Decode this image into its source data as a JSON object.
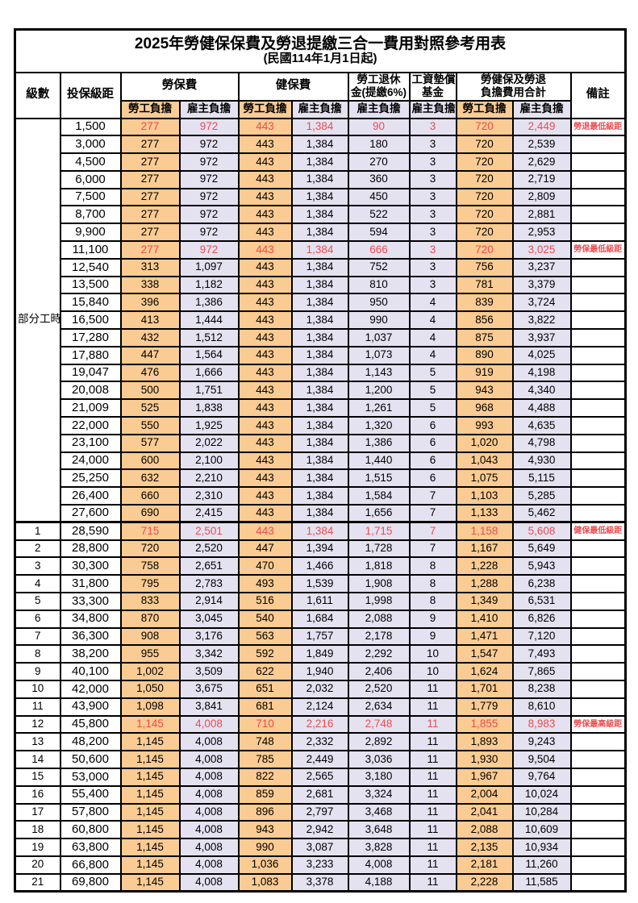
{
  "title": {
    "main": "2025年勞健保保費及勞退提繳三合一費用對照參考用表",
    "sub": "(民國114年1月1日起)"
  },
  "header": {
    "level": "級數",
    "bracket": "投保級距",
    "labor_fee": "勞保費",
    "health_fee": "健保費",
    "pension_line1": "勞工退休",
    "pension_line2": "金(提繳6%)",
    "wage_fund_line1": "工資墊償",
    "wage_fund_line2": "基金",
    "total_line1": "勞健保及勞退",
    "total_line2": "負擔費用合計",
    "remark": "備註",
    "employee_label": "勞工負擔",
    "employer_label": "雇主負擔"
  },
  "part_time_label": "部分工時",
  "colors": {
    "employee_bg": "#FACB92",
    "employer_bg": "#E4E2F1",
    "highlight_red": "#EE4B4F",
    "border": "#000000"
  },
  "rows": [
    {
      "level": "",
      "bracket": "1,500",
      "values": [
        "277",
        "972",
        "443",
        "1,384",
        "90",
        "3",
        "720",
        "2,449"
      ],
      "note": "勞退最低級距",
      "red": true
    },
    {
      "level": "",
      "bracket": "3,000",
      "values": [
        "277",
        "972",
        "443",
        "1,384",
        "180",
        "3",
        "720",
        "2,539"
      ],
      "note": "",
      "red": false
    },
    {
      "level": "",
      "bracket": "4,500",
      "values": [
        "277",
        "972",
        "443",
        "1,384",
        "270",
        "3",
        "720",
        "2,629"
      ],
      "note": "",
      "red": false
    },
    {
      "level": "",
      "bracket": "6,000",
      "values": [
        "277",
        "972",
        "443",
        "1,384",
        "360",
        "3",
        "720",
        "2,719"
      ],
      "note": "",
      "red": false
    },
    {
      "level": "",
      "bracket": "7,500",
      "values": [
        "277",
        "972",
        "443",
        "1,384",
        "450",
        "3",
        "720",
        "2,809"
      ],
      "note": "",
      "red": false
    },
    {
      "level": "",
      "bracket": "8,700",
      "values": [
        "277",
        "972",
        "443",
        "1,384",
        "522",
        "3",
        "720",
        "2,881"
      ],
      "note": "",
      "red": false
    },
    {
      "level": "",
      "bracket": "9,900",
      "values": [
        "277",
        "972",
        "443",
        "1,384",
        "594",
        "3",
        "720",
        "2,953"
      ],
      "note": "",
      "red": false
    },
    {
      "level": "",
      "bracket": "11,100",
      "values": [
        "277",
        "972",
        "443",
        "1,384",
        "666",
        "3",
        "720",
        "3,025"
      ],
      "note": "勞保最低級距",
      "red": true
    },
    {
      "level": "",
      "bracket": "12,540",
      "values": [
        "313",
        "1,097",
        "443",
        "1,384",
        "752",
        "3",
        "756",
        "3,237"
      ],
      "note": "",
      "red": false
    },
    {
      "level": "",
      "bracket": "13,500",
      "values": [
        "338",
        "1,182",
        "443",
        "1,384",
        "810",
        "3",
        "781",
        "3,379"
      ],
      "note": "",
      "red": false
    },
    {
      "level": "",
      "bracket": "15,840",
      "values": [
        "396",
        "1,386",
        "443",
        "1,384",
        "950",
        "4",
        "839",
        "3,724"
      ],
      "note": "",
      "red": false
    },
    {
      "level": "",
      "bracket": "16,500",
      "values": [
        "413",
        "1,444",
        "443",
        "1,384",
        "990",
        "4",
        "856",
        "3,822"
      ],
      "note": "",
      "red": false
    },
    {
      "level": "",
      "bracket": "17,280",
      "values": [
        "432",
        "1,512",
        "443",
        "1,384",
        "1,037",
        "4",
        "875",
        "3,937"
      ],
      "note": "",
      "red": false
    },
    {
      "level": "",
      "bracket": "17,880",
      "values": [
        "447",
        "1,564",
        "443",
        "1,384",
        "1,073",
        "4",
        "890",
        "4,025"
      ],
      "note": "",
      "red": false
    },
    {
      "level": "",
      "bracket": "19,047",
      "values": [
        "476",
        "1,666",
        "443",
        "1,384",
        "1,143",
        "5",
        "919",
        "4,198"
      ],
      "note": "",
      "red": false
    },
    {
      "level": "",
      "bracket": "20,008",
      "values": [
        "500",
        "1,751",
        "443",
        "1,384",
        "1,200",
        "5",
        "943",
        "4,340"
      ],
      "note": "",
      "red": false
    },
    {
      "level": "",
      "bracket": "21,009",
      "values": [
        "525",
        "1,838",
        "443",
        "1,384",
        "1,261",
        "5",
        "968",
        "4,488"
      ],
      "note": "",
      "red": false
    },
    {
      "level": "",
      "bracket": "22,000",
      "values": [
        "550",
        "1,925",
        "443",
        "1,384",
        "1,320",
        "6",
        "993",
        "4,635"
      ],
      "note": "",
      "red": false
    },
    {
      "level": "",
      "bracket": "23,100",
      "values": [
        "577",
        "2,022",
        "443",
        "1,384",
        "1,386",
        "6",
        "1,020",
        "4,798"
      ],
      "note": "",
      "red": false
    },
    {
      "level": "",
      "bracket": "24,000",
      "values": [
        "600",
        "2,100",
        "443",
        "1,384",
        "1,440",
        "6",
        "1,043",
        "4,930"
      ],
      "note": "",
      "red": false
    },
    {
      "level": "",
      "bracket": "25,250",
      "values": [
        "632",
        "2,210",
        "443",
        "1,384",
        "1,515",
        "6",
        "1,075",
        "5,115"
      ],
      "note": "",
      "red": false
    },
    {
      "level": "",
      "bracket": "26,400",
      "values": [
        "660",
        "2,310",
        "443",
        "1,384",
        "1,584",
        "7",
        "1,103",
        "5,285"
      ],
      "note": "",
      "red": false
    },
    {
      "level": "",
      "bracket": "27,600",
      "values": [
        "690",
        "2,415",
        "443",
        "1,384",
        "1,656",
        "7",
        "1,133",
        "5,462"
      ],
      "note": "",
      "red": false
    },
    {
      "level": "1",
      "bracket": "28,590",
      "values": [
        "715",
        "2,501",
        "443",
        "1,384",
        "1,715",
        "7",
        "1,158",
        "5,608"
      ],
      "note": "健保最低級距",
      "red": true
    },
    {
      "level": "2",
      "bracket": "28,800",
      "values": [
        "720",
        "2,520",
        "447",
        "1,394",
        "1,728",
        "7",
        "1,167",
        "5,649"
      ],
      "note": "",
      "red": false
    },
    {
      "level": "3",
      "bracket": "30,300",
      "values": [
        "758",
        "2,651",
        "470",
        "1,466",
        "1,818",
        "8",
        "1,228",
        "5,943"
      ],
      "note": "",
      "red": false
    },
    {
      "level": "4",
      "bracket": "31,800",
      "values": [
        "795",
        "2,783",
        "493",
        "1,539",
        "1,908",
        "8",
        "1,288",
        "6,238"
      ],
      "note": "",
      "red": false
    },
    {
      "level": "5",
      "bracket": "33,300",
      "values": [
        "833",
        "2,914",
        "516",
        "1,611",
        "1,998",
        "8",
        "1,349",
        "6,531"
      ],
      "note": "",
      "red": false
    },
    {
      "level": "6",
      "bracket": "34,800",
      "values": [
        "870",
        "3,045",
        "540",
        "1,684",
        "2,088",
        "9",
        "1,410",
        "6,826"
      ],
      "note": "",
      "red": false
    },
    {
      "level": "7",
      "bracket": "36,300",
      "values": [
        "908",
        "3,176",
        "563",
        "1,757",
        "2,178",
        "9",
        "1,471",
        "7,120"
      ],
      "note": "",
      "red": false
    },
    {
      "level": "8",
      "bracket": "38,200",
      "values": [
        "955",
        "3,342",
        "592",
        "1,849",
        "2,292",
        "10",
        "1,547",
        "7,493"
      ],
      "note": "",
      "red": false
    },
    {
      "level": "9",
      "bracket": "40,100",
      "values": [
        "1,002",
        "3,509",
        "622",
        "1,940",
        "2,406",
        "10",
        "1,624",
        "7,865"
      ],
      "note": "",
      "red": false
    },
    {
      "level": "10",
      "bracket": "42,000",
      "values": [
        "1,050",
        "3,675",
        "651",
        "2,032",
        "2,520",
        "11",
        "1,701",
        "8,238"
      ],
      "note": "",
      "red": false
    },
    {
      "level": "11",
      "bracket": "43,900",
      "values": [
        "1,098",
        "3,841",
        "681",
        "2,124",
        "2,634",
        "11",
        "1,779",
        "8,610"
      ],
      "note": "",
      "red": false
    },
    {
      "level": "12",
      "bracket": "45,800",
      "values": [
        "1,145",
        "4,008",
        "710",
        "2,216",
        "2,748",
        "11",
        "1,855",
        "8,983"
      ],
      "note": "勞保最高級距",
      "red": true
    },
    {
      "level": "13",
      "bracket": "48,200",
      "values": [
        "1,145",
        "4,008",
        "748",
        "2,332",
        "2,892",
        "11",
        "1,893",
        "9,243"
      ],
      "note": "",
      "red": false
    },
    {
      "level": "14",
      "bracket": "50,600",
      "values": [
        "1,145",
        "4,008",
        "785",
        "2,449",
        "3,036",
        "11",
        "1,930",
        "9,504"
      ],
      "note": "",
      "red": false
    },
    {
      "level": "15",
      "bracket": "53,000",
      "values": [
        "1,145",
        "4,008",
        "822",
        "2,565",
        "3,180",
        "11",
        "1,967",
        "9,764"
      ],
      "note": "",
      "red": false
    },
    {
      "level": "16",
      "bracket": "55,400",
      "values": [
        "1,145",
        "4,008",
        "859",
        "2,681",
        "3,324",
        "11",
        "2,004",
        "10,024"
      ],
      "note": "",
      "red": false
    },
    {
      "level": "17",
      "bracket": "57,800",
      "values": [
        "1,145",
        "4,008",
        "896",
        "2,797",
        "3,468",
        "11",
        "2,041",
        "10,284"
      ],
      "note": "",
      "red": false
    },
    {
      "level": "18",
      "bracket": "60,800",
      "values": [
        "1,145",
        "4,008",
        "943",
        "2,942",
        "3,648",
        "11",
        "2,088",
        "10,609"
      ],
      "note": "",
      "red": false
    },
    {
      "level": "19",
      "bracket": "63,800",
      "values": [
        "1,145",
        "4,008",
        "990",
        "3,087",
        "3,828",
        "11",
        "2,135",
        "10,934"
      ],
      "note": "",
      "red": false
    },
    {
      "level": "20",
      "bracket": "66,800",
      "values": [
        "1,145",
        "4,008",
        "1,036",
        "3,233",
        "4,008",
        "11",
        "2,181",
        "11,260"
      ],
      "note": "",
      "red": false
    },
    {
      "level": "21",
      "bracket": "69,800",
      "values": [
        "1,145",
        "4,008",
        "1,083",
        "3,378",
        "4,188",
        "11",
        "2,228",
        "11,585"
      ],
      "note": "",
      "red": false
    }
  ]
}
